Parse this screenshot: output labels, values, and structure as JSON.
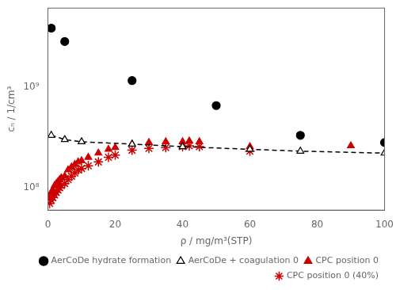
{
  "chart_data": {
    "type": "scatter",
    "xlabel": "ρ / mg/m³(STP)",
    "ylabel": "cₙ / 1/cm³",
    "log": "y",
    "xlim": [
      0,
      100
    ],
    "xticks": [
      0,
      20,
      40,
      60,
      80,
      100
    ],
    "ylim": [
      60000000.0,
      6000000000.0
    ],
    "yticks": [
      {
        "value": 100000000.0,
        "label": "10⁸"
      },
      {
        "value": 1000000000.0,
        "label": "10⁹"
      }
    ],
    "grid": false,
    "legend": "lower right",
    "series": [
      {
        "name": "AerCoDe hydrate formation",
        "color": "#000000",
        "marker": "circle",
        "line_style": "none",
        "x": [
          1,
          5,
          25,
          50,
          75,
          100
        ],
        "values": [
          3800000000.0,
          2800000000.0,
          1150000000.0,
          650000000.0,
          330000000.0,
          280000000.0
        ]
      },
      {
        "name": "AerCoDe + coagulation 0",
        "color": "#000000",
        "marker": "triangle-open",
        "line_style": "dashed",
        "x": [
          1,
          5,
          10,
          25,
          40,
          60,
          75,
          100
        ],
        "values": [
          330000000.0,
          300000000.0,
          285000000.0,
          270000000.0,
          255000000.0,
          240000000.0,
          230000000.0,
          220000000.0
        ]
      },
      {
        "name": "CPC position 0",
        "color": "#cc0000",
        "marker": "triangle",
        "line_style": "none",
        "x": [
          0.5,
          1,
          1.5,
          2,
          2.5,
          3,
          3.5,
          4,
          5,
          6,
          7,
          8,
          9,
          10,
          12,
          15,
          18,
          20,
          25,
          30,
          35,
          40,
          42,
          45,
          60,
          90
        ],
        "values": [
          80000000.0,
          90000000.0,
          95000000.0,
          105000000.0,
          110000000.0,
          115000000.0,
          120000000.0,
          125000000.0,
          130000000.0,
          150000000.0,
          160000000.0,
          170000000.0,
          180000000.0,
          185000000.0,
          200000000.0,
          220000000.0,
          240000000.0,
          250000000.0,
          270000000.0,
          280000000.0,
          285000000.0,
          285000000.0,
          290000000.0,
          285000000.0,
          255000000.0,
          260000000.0
        ]
      },
      {
        "name": "CPC position 0 (40%)",
        "color": "#cc0000",
        "marker": "star",
        "line_style": "none",
        "x": [
          0.5,
          1,
          1.5,
          2,
          2.5,
          3,
          3.5,
          4,
          5,
          6,
          7,
          8,
          9,
          10,
          12,
          15,
          18,
          20,
          25,
          30,
          35,
          40,
          42,
          45,
          60
        ],
        "values": [
          70000000.0,
          75000000.0,
          80000000.0,
          85000000.0,
          90000000.0,
          95000000.0,
          100000000.0,
          105000000.0,
          110000000.0,
          120000000.0,
          130000000.0,
          140000000.0,
          150000000.0,
          155000000.0,
          165000000.0,
          180000000.0,
          200000000.0,
          210000000.0,
          235000000.0,
          245000000.0,
          250000000.0,
          255000000.0,
          260000000.0,
          255000000.0,
          230000000.0
        ]
      }
    ]
  }
}
